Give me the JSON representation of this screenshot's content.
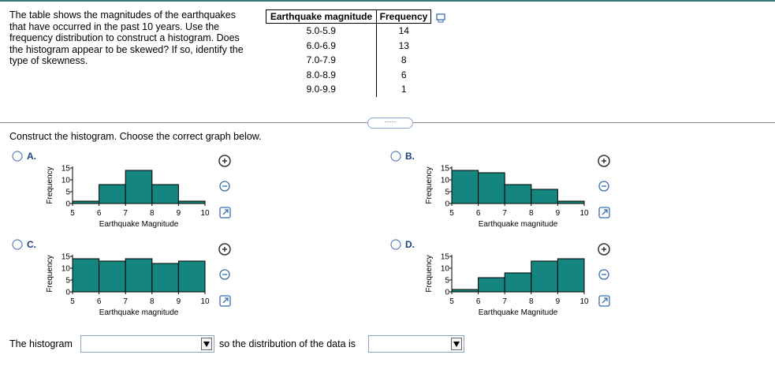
{
  "question": "The table shows the magnitudes of the earthquakes that have occurred in the past 10 years. Use the frequency distribution to construct a histogram. Does the histogram appear to be skewed? If so, identify the type of skewness.",
  "table": {
    "header": [
      "Earthquake magnitude",
      "Frequency"
    ],
    "rows": [
      [
        "5.0-5.9",
        "14"
      ],
      [
        "6.0-6.9",
        "13"
      ],
      [
        "7.0-7.9",
        "8"
      ],
      [
        "8.0-8.9",
        "6"
      ],
      [
        "9.0-9.9",
        "1"
      ]
    ]
  },
  "instruction": "Construct the histogram. Choose the correct graph below.",
  "options": [
    {
      "label": "A.",
      "chart": {
        "type": "histogram",
        "y_label": "Frequency",
        "x_label": "Earthquake Magnitude",
        "bins": [
          5,
          6,
          7,
          8,
          9,
          10
        ],
        "values": [
          1,
          8,
          14,
          8,
          1
        ],
        "xlim": [
          5,
          10
        ],
        "ylim": [
          0,
          15
        ],
        "xticks": [
          5,
          6,
          7,
          8,
          9,
          10
        ],
        "yticks": [
          0,
          5,
          10,
          15
        ],
        "color": "#14857f"
      }
    },
    {
      "label": "B.",
      "chart": {
        "type": "histogram",
        "y_label": "Frequency",
        "x_label": "Earthquake magnitude",
        "bins": [
          5,
          6,
          7,
          8,
          9,
          10
        ],
        "values": [
          14,
          13,
          8,
          6,
          1
        ],
        "xlim": [
          5,
          10
        ],
        "ylim": [
          0,
          15
        ],
        "xticks": [
          5,
          6,
          7,
          8,
          9,
          10
        ],
        "yticks": [
          0,
          5,
          10,
          15
        ],
        "color": "#14857f"
      }
    },
    {
      "label": "C.",
      "chart": {
        "type": "histogram",
        "y_label": "Frequency",
        "x_label": "Earthquake magnitude",
        "bins": [
          5,
          6,
          7,
          8,
          9,
          10
        ],
        "values": [
          14,
          13,
          14,
          12,
          13
        ],
        "xlim": [
          5,
          10
        ],
        "ylim": [
          0,
          15
        ],
        "xticks": [
          5,
          6,
          7,
          8,
          9,
          10
        ],
        "yticks": [
          0,
          5,
          10,
          15
        ],
        "color": "#14857f"
      }
    },
    {
      "label": "D.",
      "chart": {
        "type": "histogram",
        "y_label": "Frequency",
        "x_label": "Earthquake Magnitude",
        "bins": [
          5,
          6,
          7,
          8,
          9,
          10
        ],
        "values": [
          1,
          6,
          8,
          13,
          14
        ],
        "xlim": [
          5,
          10
        ],
        "ylim": [
          0,
          15
        ],
        "xticks": [
          5,
          6,
          7,
          8,
          9,
          10
        ],
        "yticks": [
          0,
          5,
          10,
          15
        ],
        "color": "#14857f"
      }
    }
  ],
  "answer": {
    "prefix": "The histogram",
    "middle": "so the distribution of the data is"
  }
}
